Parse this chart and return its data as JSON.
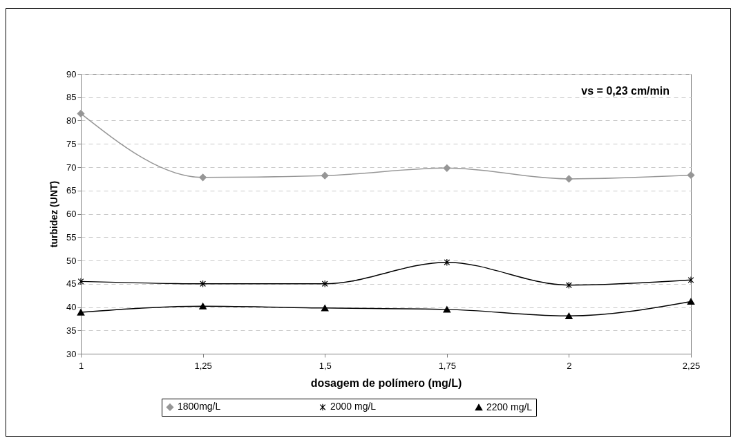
{
  "chart_data": {
    "type": "line",
    "xlabel": "dosagem de polímero (mg/L)",
    "ylabel": "turbidez (UNT)",
    "annotations": [
      "vs = 0,23 cm/min"
    ],
    "categories": [
      "1",
      "1,25",
      "1,5",
      "1,75",
      "2",
      "2,25"
    ],
    "series": [
      {
        "name": "1800mg/L",
        "color": "#969696",
        "marker": "diamond",
        "values": [
          81.5,
          67.8,
          68.2,
          69.8,
          67.5,
          68.3
        ]
      },
      {
        "name": "2000 mg/L",
        "color": "#000000",
        "marker": "cross",
        "values": [
          45.5,
          45.0,
          45.0,
          49.6,
          44.7,
          45.8
        ]
      },
      {
        "name": "2200 mg/L",
        "color": "#000000",
        "marker": "triangle",
        "values": [
          38.9,
          40.2,
          39.8,
          39.5,
          38.1,
          41.2
        ]
      }
    ],
    "ylim": [
      30,
      90
    ],
    "yticks": [
      30,
      35,
      40,
      45,
      50,
      55,
      60,
      65,
      70,
      75,
      80,
      85,
      90
    ],
    "grid": "y",
    "legend": "bottom",
    "line_style": "solid"
  }
}
